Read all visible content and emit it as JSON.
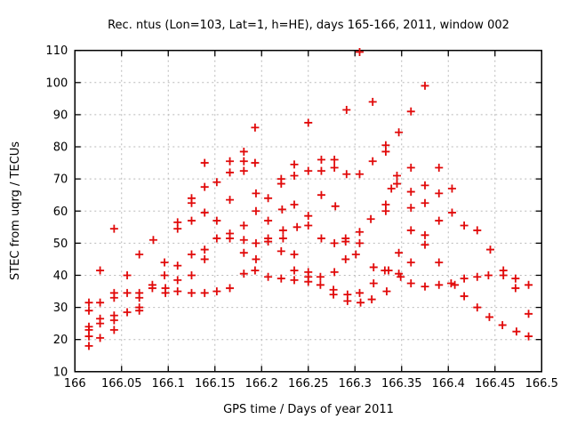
{
  "chart_data": {
    "type": "scatter",
    "title": "Rec. ntus (Lon=103, Lat=1, h=HE), days 165-166, 2011, window 002",
    "xlabel": "GPS time / Days of year 2011",
    "ylabel": "STEC from uqrg / TECUs",
    "xlim": [
      166,
      166.5
    ],
    "ylim": [
      10,
      110
    ],
    "xtick_labels": [
      "166",
      "166.05",
      "166.1",
      "166.15",
      "166.2",
      "166.25",
      "166.3",
      "166.35",
      "166.4",
      "166.45",
      "166.5"
    ],
    "ytick_labels": [
      "10",
      "20",
      "30",
      "40",
      "50",
      "60",
      "70",
      "80",
      "90",
      "100",
      "110"
    ],
    "grid": true,
    "legend": "none",
    "marker": "plus",
    "marker_color": "#e10a0a",
    "grid_color": "#b9b9b9",
    "border_color": "#000000",
    "points": [
      [
        166.015,
        31.5
      ],
      [
        166.015,
        29
      ],
      [
        166.015,
        24
      ],
      [
        166.015,
        23
      ],
      [
        166.015,
        21
      ],
      [
        166.015,
        18
      ],
      [
        166.027,
        41.5
      ],
      [
        166.027,
        31.5
      ],
      [
        166.027,
        26.5
      ],
      [
        166.027,
        25
      ],
      [
        166.027,
        20.5
      ],
      [
        166.042,
        54.5
      ],
      [
        166.042,
        34.5
      ],
      [
        166.042,
        33
      ],
      [
        166.042,
        27.5
      ],
      [
        166.042,
        26
      ],
      [
        166.042,
        23
      ],
      [
        166.056,
        40
      ],
      [
        166.056,
        34.5
      ],
      [
        166.056,
        28.5
      ],
      [
        166.069,
        46.5
      ],
      [
        166.069,
        34.5
      ],
      [
        166.069,
        33
      ],
      [
        166.069,
        30
      ],
      [
        166.069,
        29
      ],
      [
        166.084,
        51
      ],
      [
        166.083,
        37
      ],
      [
        166.083,
        36
      ],
      [
        166.096,
        44
      ],
      [
        166.096,
        40
      ],
      [
        166.097,
        36
      ],
      [
        166.097,
        34.5
      ],
      [
        166.11,
        56.5
      ],
      [
        166.11,
        54.5
      ],
      [
        166.11,
        43
      ],
      [
        166.11,
        38.5
      ],
      [
        166.11,
        35
      ],
      [
        166.125,
        64
      ],
      [
        166.125,
        62.5
      ],
      [
        166.125,
        57
      ],
      [
        166.125,
        46.5
      ],
      [
        166.125,
        40
      ],
      [
        166.125,
        34.5
      ],
      [
        166.139,
        75
      ],
      [
        166.139,
        67.5
      ],
      [
        166.139,
        59.5
      ],
      [
        166.139,
        48
      ],
      [
        166.139,
        45
      ],
      [
        166.139,
        34.5
      ],
      [
        166.152,
        69
      ],
      [
        166.152,
        57
      ],
      [
        166.152,
        51.5
      ],
      [
        166.152,
        35
      ],
      [
        166.166,
        75.5
      ],
      [
        166.166,
        72
      ],
      [
        166.166,
        63.5
      ],
      [
        166.166,
        53
      ],
      [
        166.166,
        51.5
      ],
      [
        166.166,
        36
      ],
      [
        166.181,
        78.5
      ],
      [
        166.181,
        75.5
      ],
      [
        166.181,
        72.5
      ],
      [
        166.181,
        55.5
      ],
      [
        166.181,
        51
      ],
      [
        166.181,
        47
      ],
      [
        166.181,
        40.5
      ],
      [
        166.193,
        86
      ],
      [
        166.193,
        75
      ],
      [
        166.194,
        65.5
      ],
      [
        166.194,
        60
      ],
      [
        166.194,
        50
      ],
      [
        166.194,
        45
      ],
      [
        166.193,
        41.5
      ],
      [
        166.207,
        64
      ],
      [
        166.207,
        57
      ],
      [
        166.207,
        51.5
      ],
      [
        166.207,
        50.5
      ],
      [
        166.207,
        39.5
      ],
      [
        166.221,
        70
      ],
      [
        166.221,
        68.5
      ],
      [
        166.222,
        60.5
      ],
      [
        166.223,
        54
      ],
      [
        166.223,
        51.5
      ],
      [
        166.221,
        47.5
      ],
      [
        166.221,
        39
      ],
      [
        166.235,
        74.5
      ],
      [
        166.235,
        71
      ],
      [
        166.235,
        62
      ],
      [
        166.238,
        55
      ],
      [
        166.235,
        46.5
      ],
      [
        166.235,
        41.5
      ],
      [
        166.235,
        38.5
      ],
      [
        166.25,
        87.5
      ],
      [
        166.25,
        72.5
      ],
      [
        166.25,
        58.5
      ],
      [
        166.25,
        55.5
      ],
      [
        166.25,
        41
      ],
      [
        166.25,
        39.5
      ],
      [
        166.25,
        38
      ],
      [
        166.264,
        76
      ],
      [
        166.264,
        72.5
      ],
      [
        166.264,
        65
      ],
      [
        166.264,
        51.5
      ],
      [
        166.263,
        39.5
      ],
      [
        166.263,
        37
      ],
      [
        166.278,
        76
      ],
      [
        166.278,
        73.5
      ],
      [
        166.279,
        61.5
      ],
      [
        166.278,
        50
      ],
      [
        166.278,
        41
      ],
      [
        166.277,
        35.5
      ],
      [
        166.277,
        34
      ],
      [
        166.291,
        91.5
      ],
      [
        166.291,
        71.5
      ],
      [
        166.29,
        51.5
      ],
      [
        166.29,
        50.5
      ],
      [
        166.29,
        45
      ],
      [
        166.292,
        34
      ],
      [
        166.292,
        32
      ],
      [
        166.301,
        46.5
      ],
      [
        166.305,
        109.5
      ],
      [
        166.305,
        71.5
      ],
      [
        166.305,
        53.5
      ],
      [
        166.305,
        50
      ],
      [
        166.305,
        34.5
      ],
      [
        166.306,
        31.5
      ],
      [
        166.319,
        94
      ],
      [
        166.319,
        75.5
      ],
      [
        166.317,
        57.5
      ],
      [
        166.32,
        42.5
      ],
      [
        166.32,
        37.5
      ],
      [
        166.318,
        32.5
      ],
      [
        166.333,
        80.5
      ],
      [
        166.333,
        78.5
      ],
      [
        166.333,
        62
      ],
      [
        166.333,
        60
      ],
      [
        166.332,
        41.5
      ],
      [
        166.336,
        41.5
      ],
      [
        166.334,
        35
      ],
      [
        166.339,
        67
      ],
      [
        166.347,
        84.5
      ],
      [
        166.345,
        71
      ],
      [
        166.345,
        68.5
      ],
      [
        166.347,
        47
      ],
      [
        166.347,
        40.5
      ],
      [
        166.349,
        39.5
      ],
      [
        166.36,
        91
      ],
      [
        166.36,
        73.5
      ],
      [
        166.36,
        66
      ],
      [
        166.36,
        61
      ],
      [
        166.36,
        54
      ],
      [
        166.36,
        44
      ],
      [
        166.36,
        37.5
      ],
      [
        166.375,
        99
      ],
      [
        166.375,
        68
      ],
      [
        166.375,
        62.5
      ],
      [
        166.375,
        52.5
      ],
      [
        166.375,
        49.5
      ],
      [
        166.375,
        36.5
      ],
      [
        166.39,
        73.5
      ],
      [
        166.39,
        65.5
      ],
      [
        166.39,
        57
      ],
      [
        166.39,
        44
      ],
      [
        166.39,
        37
      ],
      [
        166.404,
        67
      ],
      [
        166.404,
        59.5
      ],
      [
        166.403,
        37.5
      ],
      [
        166.407,
        37
      ],
      [
        166.417,
        55.5
      ],
      [
        166.417,
        39
      ],
      [
        166.417,
        33.5
      ],
      [
        166.431,
        54
      ],
      [
        166.431,
        39.5
      ],
      [
        166.431,
        30
      ],
      [
        166.445,
        48
      ],
      [
        166.443,
        40
      ],
      [
        166.444,
        27
      ],
      [
        166.459,
        41.5
      ],
      [
        166.459,
        40
      ],
      [
        166.458,
        24.5
      ],
      [
        166.472,
        39
      ],
      [
        166.472,
        36
      ],
      [
        166.473,
        22.5
      ],
      [
        166.486,
        37
      ],
      [
        166.486,
        28
      ],
      [
        166.486,
        21
      ]
    ]
  }
}
